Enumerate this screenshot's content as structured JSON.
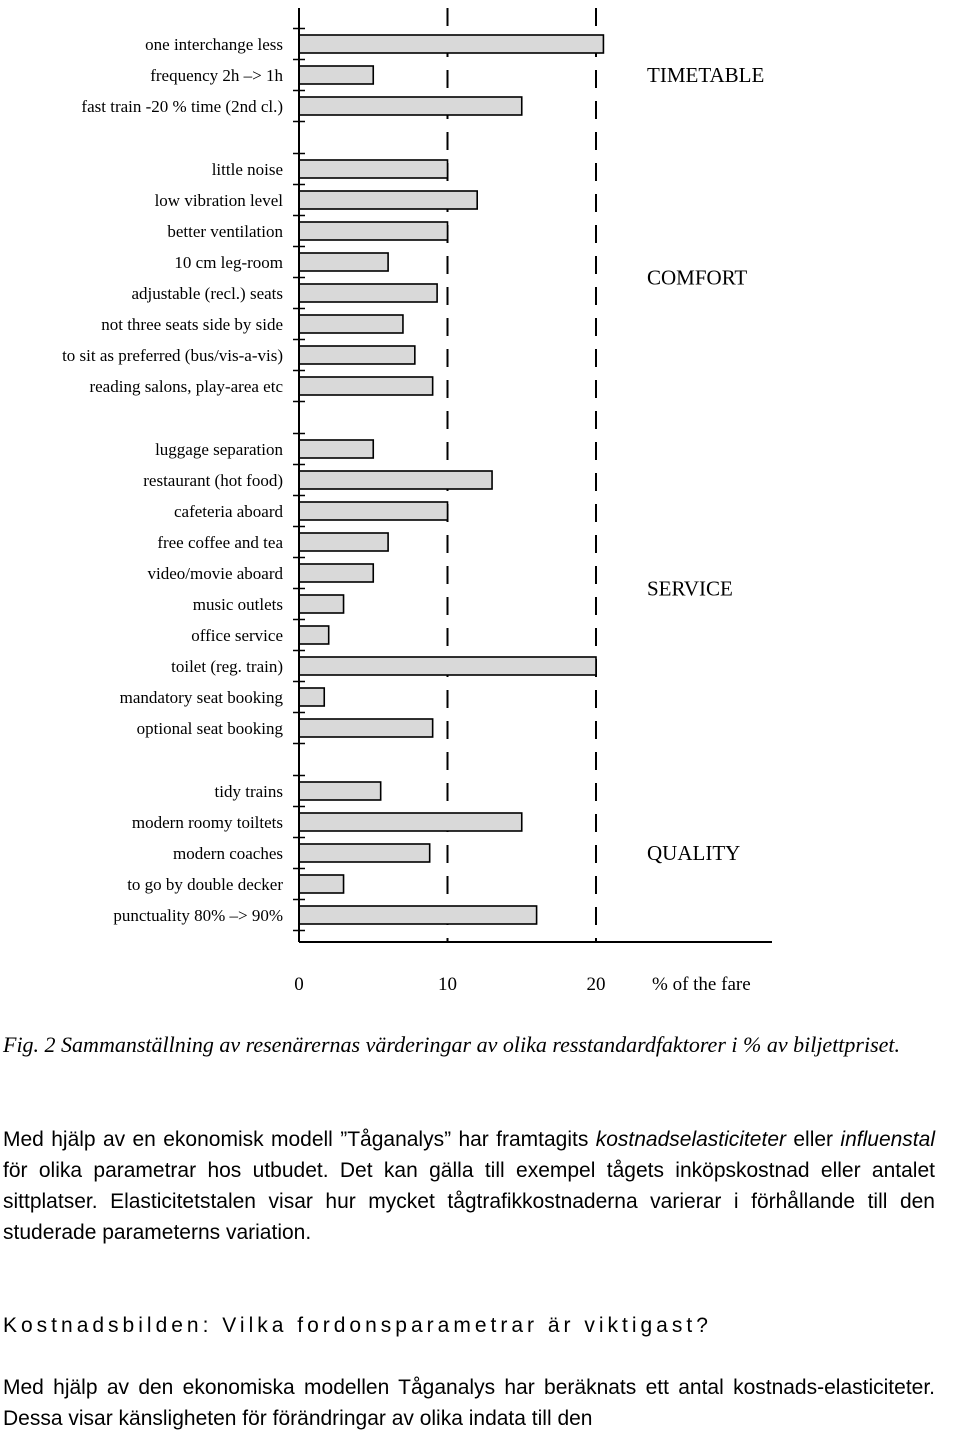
{
  "chart_data": {
    "type": "bar",
    "orientation": "horizontal",
    "unit_label": "% of the fare",
    "xlim": [
      0,
      21
    ],
    "x_ticks": [
      "0",
      "10",
      "20"
    ],
    "gridlines": "dashed at 10 and 20",
    "groups": [
      {
        "name": "TIMETABLE",
        "categories": [
          "one interchange less",
          "frequency  2h –> 1h",
          "fast train  -20 % time (2nd cl.)"
        ],
        "values": [
          20.5,
          5,
          15
        ]
      },
      {
        "name": "COMFORT",
        "categories": [
          "little noise",
          "low vibration level",
          "better ventilation",
          "10 cm leg-room",
          "adjustable (recl.) seats",
          "not three seats side by side",
          "to sit as preferred (bus/vis-a-vis)",
          "reading salons, play-area etc"
        ],
        "values": [
          10,
          12,
          10,
          6,
          9.3,
          7,
          7.8,
          9
        ]
      },
      {
        "name": "SERVICE",
        "categories": [
          "luggage separation",
          "restaurant (hot food)",
          "cafeteria aboard",
          "free coffee and tea",
          "video/movie aboard",
          "music outlets",
          "office service",
          "toilet (reg. train)",
          "mandatory seat booking",
          "optional seat booking"
        ],
        "values": [
          5,
          13,
          10,
          6,
          5,
          3,
          2,
          20,
          1.7,
          9
        ]
      },
      {
        "name": "QUALITY",
        "categories": [
          "tidy trains",
          "modern roomy  toiltets",
          "modern coaches",
          "to go by double decker",
          "punctuality  80% –> 90%"
        ],
        "values": [
          5.5,
          15,
          8.8,
          3,
          16
        ]
      }
    ]
  },
  "text": {
    "caption": "Fig. 2  Sammanställning av resenärernas värderingar av olika resstandardfaktorer i % av biljettpriset.",
    "para1": {
      "s1": "Med hjälp av en ekonomisk modell ”Tåganalys” har framtagits ",
      "e1": "kostnadselasticiteter",
      "s2": " eller ",
      "e2": "influenstal",
      "s3": " för olika parametrar hos utbudet. Det kan gälla till exempel tågets inköpskostnad eller antalet sittplatser. Elasticitetstalen visar hur mycket tågtrafikkostnaderna varierar i förhållande till den studerade parameterns variation."
    },
    "heading": "Kostnadsbilden: Vilka fordonsparametrar är viktigast?",
    "para2": "Med hjälp av den ekonomiska modellen Tåganalys har beräknats ett antal kostnads-elasticiteter. Dessa visar känsligheten för förändringar av olika indata till den"
  }
}
